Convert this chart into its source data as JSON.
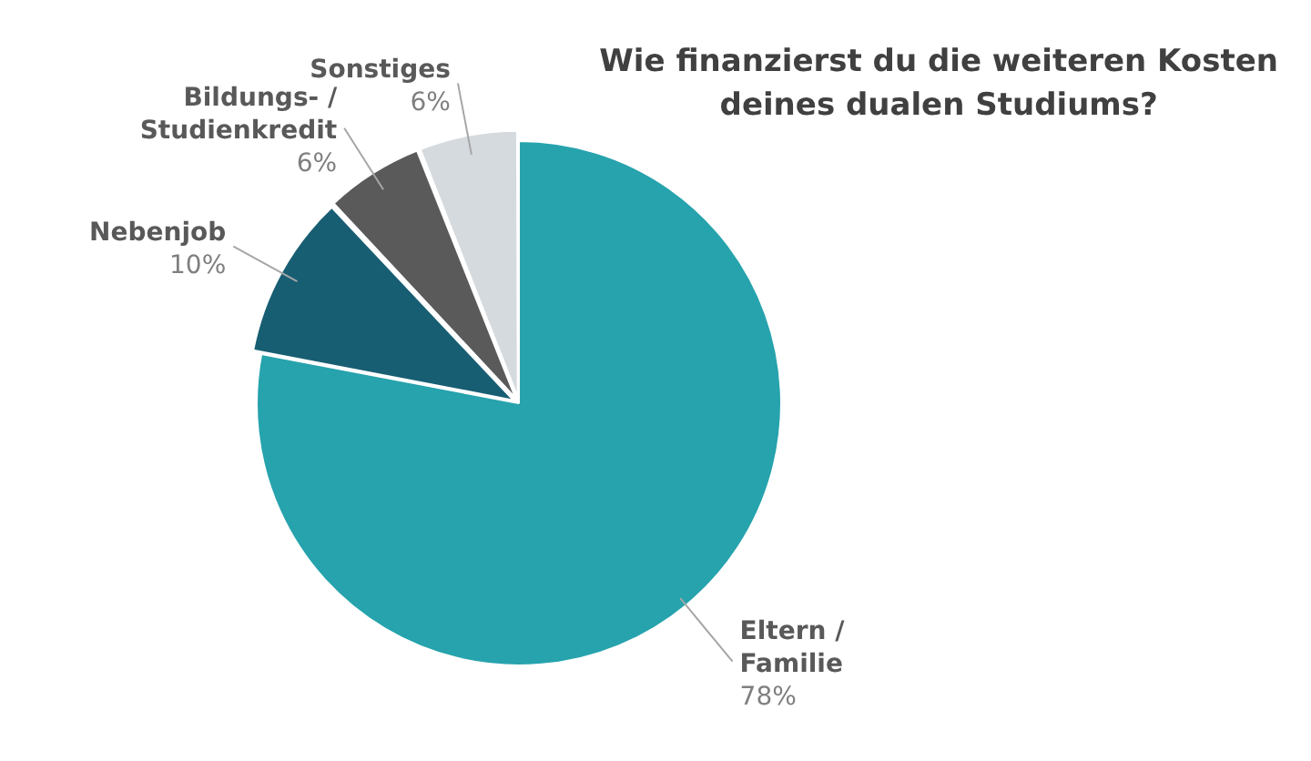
{
  "chart_data": {
    "type": "pie",
    "title": "Wie finanzierst du die weiteren Kosten\ndeines dualen Studiums?",
    "categories": [
      "Eltern /\nFamilie",
      "Nebenjob",
      "Bildungs- /\nStudienkredit",
      "Sonstiges"
    ],
    "values": [
      78,
      10,
      6,
      6
    ],
    "value_labels": [
      "78%",
      "10%",
      "6%",
      "6%"
    ],
    "colors": [
      "#26a3ad",
      "#185e73",
      "#5a5a5a",
      "#d5dadf"
    ],
    "legend": false
  }
}
